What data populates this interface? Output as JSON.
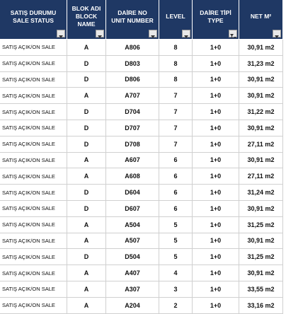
{
  "header": {
    "columns": [
      {
        "lines": [
          "SATIŞ DURUMU",
          "SALE STATUS"
        ]
      },
      {
        "lines": [
          "BLOK ADI",
          "BLOCK",
          "NAME"
        ]
      },
      {
        "lines": [
          "DAİRE NO",
          "UNIT NUMBER"
        ]
      },
      {
        "lines": [
          "LEVEL"
        ]
      },
      {
        "lines": [
          "DAİRE TİPİ",
          "TYPE"
        ]
      },
      {
        "lines": [
          "NET M²"
        ]
      }
    ]
  },
  "table": {
    "rows": [
      [
        "SATIŞ AÇIK/ON SALE",
        "A",
        "A806",
        "8",
        "1+0",
        "30,91 m2"
      ],
      [
        "SATIŞ AÇIK/ON SALE",
        "D",
        "D803",
        "8",
        "1+0",
        "31,23 m2"
      ],
      [
        "SATIŞ AÇIK/ON SALE",
        "D",
        "D806",
        "8",
        "1+0",
        "30,91 m2"
      ],
      [
        "SATIŞ AÇIK/ON SALE",
        "A",
        "A707",
        "7",
        "1+0",
        "30,91 m2"
      ],
      [
        "SATIŞ AÇIK/ON SALE",
        "D",
        "D704",
        "7",
        "1+0",
        "31,22 m2"
      ],
      [
        "SATIŞ AÇIK/ON SALE",
        "D",
        "D707",
        "7",
        "1+0",
        "30,91 m2"
      ],
      [
        "SATIŞ AÇIK/ON SALE",
        "D",
        "D708",
        "7",
        "1+0",
        "27,11 m2"
      ],
      [
        "SATIŞ AÇIK/ON SALE",
        "A",
        "A607",
        "6",
        "1+0",
        "30,91 m2"
      ],
      [
        "SATIŞ AÇIK/ON SALE",
        "A",
        "A608",
        "6",
        "1+0",
        "27,11 m2"
      ],
      [
        "SATIŞ AÇIK/ON SALE",
        "D",
        "D604",
        "6",
        "1+0",
        "31,24 m2"
      ],
      [
        "SATIŞ AÇIK/ON SALE",
        "D",
        "D607",
        "6",
        "1+0",
        "30,91 m2"
      ],
      [
        "SATIŞ AÇIK/ON SALE",
        "A",
        "A504",
        "5",
        "1+0",
        "31,25 m2"
      ],
      [
        "SATIŞ AÇIK/ON SALE",
        "A",
        "A507",
        "5",
        "1+0",
        "30,91 m2"
      ],
      [
        "SATIŞ AÇIK/ON SALE",
        "D",
        "D504",
        "5",
        "1+0",
        "31,25 m2"
      ],
      [
        "SATIŞ AÇIK/ON SALE",
        "A",
        "A407",
        "4",
        "1+0",
        "30,91 m2"
      ],
      [
        "SATIŞ AÇIK/ON SALE",
        "A",
        "A307",
        "3",
        "1+0",
        "33,55 m2"
      ],
      [
        "SATIŞ AÇIK/ON SALE",
        "A",
        "A204",
        "2",
        "1+0",
        "33,16 m2"
      ]
    ]
  }
}
